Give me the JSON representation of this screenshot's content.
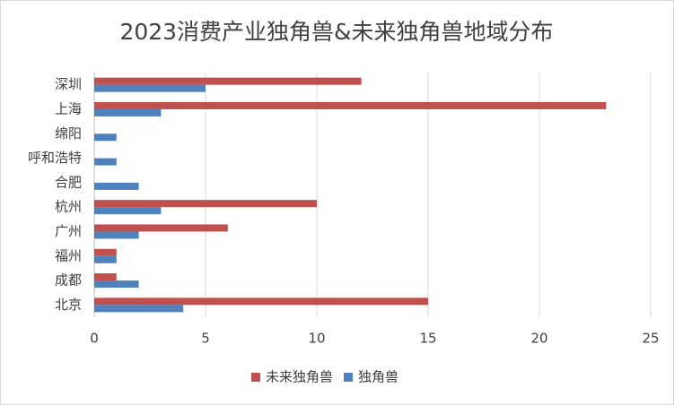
{
  "chart_data": {
    "type": "barh",
    "title": "2023消费产业独角兽&未来独角兽地域分布",
    "categories": [
      "深圳",
      "上海",
      "绵阳",
      "呼和浩特",
      "合肥",
      "杭州",
      "广州",
      "福州",
      "成都",
      "北京"
    ],
    "series": [
      {
        "name": "未来独角兽",
        "color": "#c0504d",
        "values": [
          12,
          23,
          0,
          0,
          0,
          10,
          6,
          1,
          1,
          15
        ]
      },
      {
        "name": "独角兽",
        "color": "#4f81bd",
        "values": [
          5,
          3,
          1,
          1,
          2,
          3,
          2,
          1,
          2,
          4
        ]
      }
    ],
    "xlim": [
      0,
      25
    ],
    "xticks": [
      0,
      5,
      10,
      15,
      20,
      25
    ],
    "grid": true,
    "legend": "bottom"
  }
}
